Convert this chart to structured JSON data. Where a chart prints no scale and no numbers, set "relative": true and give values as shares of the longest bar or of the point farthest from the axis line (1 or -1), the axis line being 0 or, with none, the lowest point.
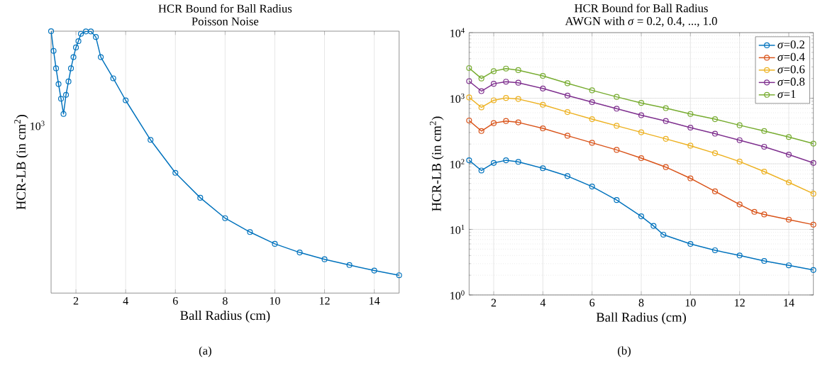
{
  "chart_data": [
    {
      "type": "line",
      "title": "HCR Bound for Ball Radius",
      "subtitle": "Poisson Noise",
      "xlabel": "Ball Radius (cm)",
      "ylabel": "HCR-LB (in cm$^{2}$)",
      "annotations": [
        "(a)",
        "10$^{3}$"
      ],
      "relative": true,
      "xlim": [
        1,
        15
      ],
      "xticks": [
        2,
        4,
        6,
        8,
        10,
        12,
        14
      ],
      "grid": "x",
      "marker": "circle",
      "legend": false,
      "series": [
        {
          "color": "#0072bd",
          "x": [
            1,
            1.1,
            1.2,
            1.3,
            1.4,
            1.5,
            1.6,
            1.7,
            1.8,
            1.9,
            2.0,
            2.1,
            2.2,
            2.4,
            2.6,
            2.8,
            3,
            3.5,
            4,
            5,
            6,
            7,
            8,
            9,
            10,
            11,
            12,
            13,
            14,
            15
          ],
          "values": [
            1,
            0.925,
            0.858,
            0.798,
            0.742,
            0.684,
            0.757,
            0.808,
            0.858,
            0.901,
            0.938,
            0.962,
            0.99,
            0.999,
            0.999,
            0.978,
            0.901,
            0.82,
            0.736,
            0.585,
            0.459,
            0.364,
            0.286,
            0.233,
            0.188,
            0.155,
            0.129,
            0.107,
            0.086,
            0.068
          ]
        }
      ]
    },
    {
      "type": "line",
      "title": "HCR Bound for Ball Radius",
      "subtitle": "AWGN with *σ* = 0.2, 0.4, ..., 1.0",
      "xlabel": "Ball Radius (cm)",
      "ylabel": "HCR-LB (in cm$^{2}$)",
      "annotations": [
        "(b)"
      ],
      "log": "y",
      "xlim": [
        1,
        15
      ],
      "xticks": [
        2,
        4,
        6,
        8,
        10,
        12,
        14
      ],
      "ylim": [
        1,
        10000
      ],
      "yticks": [
        {
          "value": 1,
          "label": "10$^{0}$"
        },
        {
          "value": 10,
          "label": "10$^{1}$"
        },
        {
          "value": 100,
          "label": "10$^{2}$"
        },
        {
          "value": 1000,
          "label": "10$^{3}$"
        },
        {
          "value": 10000,
          "label": "10$^{4}$"
        }
      ],
      "grid": true,
      "marker": "circle",
      "legend": "top right",
      "series": [
        {
          "name": "*σ*=0.2",
          "color": "#0072bd",
          "x": [
            1,
            1.5,
            2,
            2.5,
            3,
            4,
            5,
            6,
            7,
            8,
            8.5,
            8.9,
            10,
            11,
            12,
            13,
            14,
            15
          ],
          "values": [
            113,
            79,
            103,
            113,
            107,
            85.5,
            65,
            45,
            28,
            15.8,
            11.3,
            8.3,
            6.0,
            4.8,
            4.0,
            3.3,
            2.83,
            2.4
          ]
        },
        {
          "name": "*σ*=0.4",
          "color": "#d95319",
          "x": [
            1,
            1.5,
            2,
            2.5,
            3,
            4,
            5,
            6,
            7,
            8,
            9,
            10,
            11,
            12,
            12.6,
            13,
            14,
            15
          ],
          "values": [
            457,
            316,
            417,
            449,
            428,
            347,
            268,
            209,
            163,
            122,
            89,
            60,
            38,
            24,
            18.5,
            16.9,
            14.1,
            11.8
          ]
        },
        {
          "name": "*σ*=0.6",
          "color": "#edb120",
          "x": [
            1,
            1.5,
            2,
            2.5,
            3,
            4,
            5,
            6,
            7,
            8,
            9,
            10,
            11,
            12,
            13,
            14,
            15
          ],
          "values": [
            1028,
            724,
            929,
            1009,
            973,
            794,
            614,
            479,
            380,
            302,
            240,
            189,
            145,
            108,
            76,
            52,
            35
          ]
        },
        {
          "name": "*σ*=0.8",
          "color": "#7e2f8e",
          "x": [
            1,
            1.5,
            2,
            2.5,
            3,
            4,
            5,
            6,
            7,
            8,
            9,
            10,
            11,
            12,
            13,
            14,
            15
          ],
          "values": [
            1820,
            1282,
            1660,
            1786,
            1722,
            1406,
            1096,
            871,
            692,
            550,
            449,
            356,
            288,
            229,
            182,
            138,
            103
          ]
        },
        {
          "name": "*σ*=1",
          "color": "#77ac30",
          "x": [
            1,
            1.5,
            2,
            2.5,
            3,
            4,
            5,
            6,
            7,
            8,
            9,
            10,
            11,
            12,
            13,
            14,
            15
          ],
          "values": [
            2884,
            2000,
            2582,
            2831,
            2679,
            2188,
            1690,
            1318,
            1047,
            847,
            705,
            575,
            479,
            387,
            316,
            256,
            203
          ]
        }
      ]
    }
  ]
}
